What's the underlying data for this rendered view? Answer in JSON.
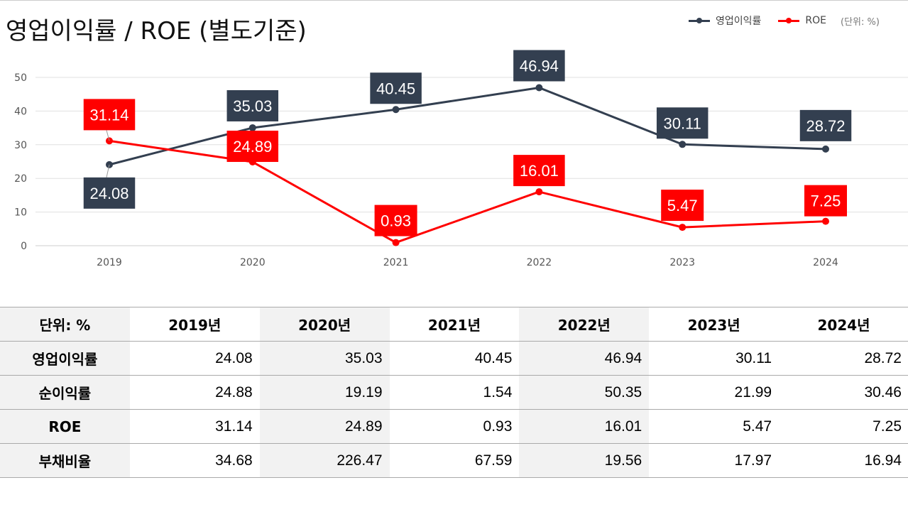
{
  "title": "영업이익률 / ROE (별도기준)",
  "legend": {
    "op": "영업이익률",
    "roe": "ROE",
    "unit": "(단위: %)"
  },
  "colors": {
    "op": "#333f50",
    "roe": "#ff0000"
  },
  "chart_data": {
    "type": "line",
    "title": "영업이익률 / ROE (별도기준)",
    "categories": [
      "2019",
      "2020",
      "2021",
      "2022",
      "2023",
      "2024"
    ],
    "ylim": [
      0,
      50
    ],
    "yticks": [
      "0",
      "10",
      "20",
      "30",
      "40",
      "50"
    ],
    "grid": true,
    "legend_position": "top-right",
    "series": [
      {
        "name": "영업이익률",
        "values": [
          24.08,
          35.03,
          40.45,
          46.94,
          30.11,
          28.72
        ],
        "labels": [
          "24.08",
          "35.03",
          "40.45",
          "46.94",
          "30.11",
          "28.72"
        ]
      },
      {
        "name": "ROE",
        "values": [
          31.14,
          24.89,
          0.93,
          16.01,
          5.47,
          7.25
        ],
        "labels": [
          "31.14",
          "24.89",
          "0.93",
          "16.01",
          "5.47",
          "7.25"
        ]
      }
    ]
  },
  "table": {
    "header": [
      "단위: %",
      "2019년",
      "2020년",
      "2021년",
      "2022년",
      "2023년",
      "2024년"
    ],
    "rows": [
      {
        "label": "영업이익률",
        "values": [
          "24.08",
          "35.03",
          "40.45",
          "46.94",
          "30.11",
          "28.72"
        ]
      },
      {
        "label": "순이익률",
        "values": [
          "24.88",
          "19.19",
          "1.54",
          "50.35",
          "21.99",
          "30.46"
        ]
      },
      {
        "label": "ROE",
        "values": [
          "31.14",
          "24.89",
          "0.93",
          "16.01",
          "5.47",
          "7.25"
        ]
      },
      {
        "label": "부채비율",
        "values": [
          "34.68",
          "226.47",
          "67.59",
          "19.56",
          "17.97",
          "16.94"
        ]
      }
    ]
  }
}
